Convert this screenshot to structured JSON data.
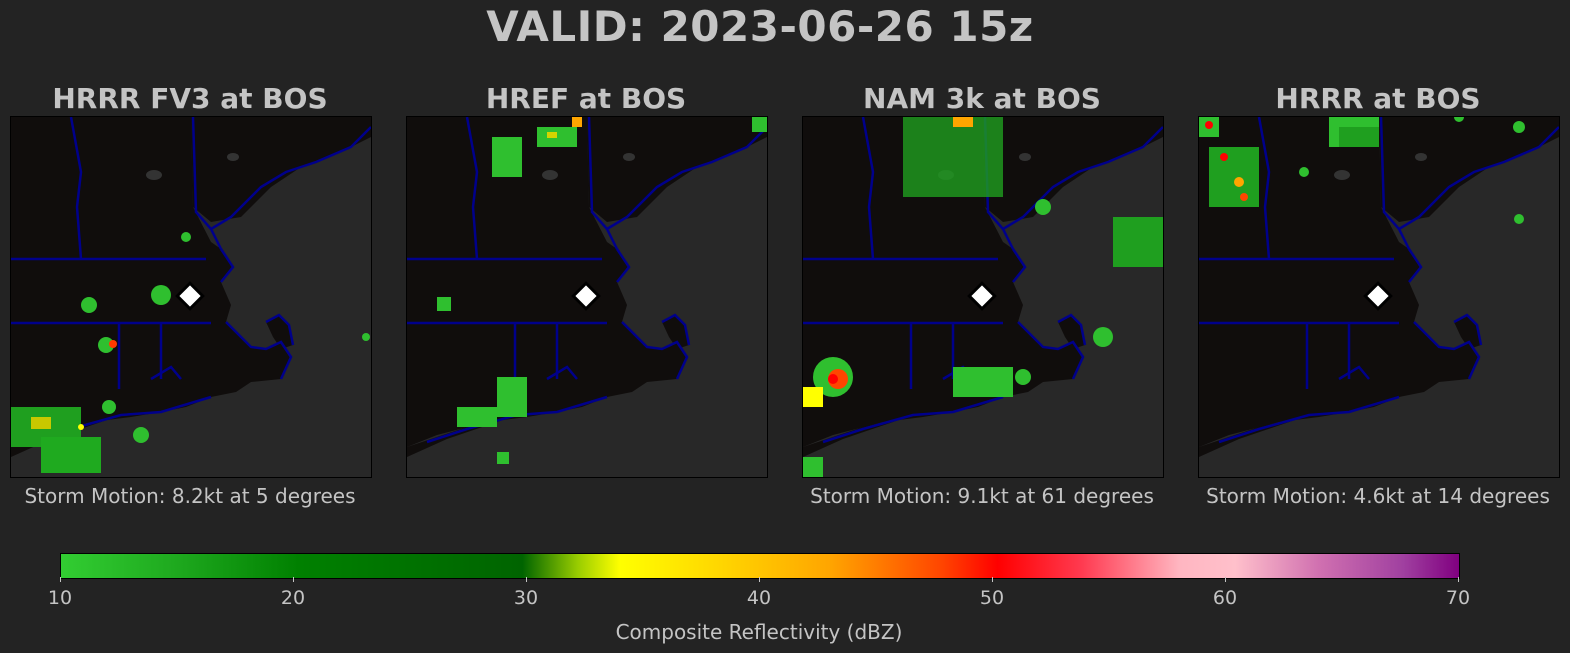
{
  "valid_title": "VALID: 2023-06-26 15z",
  "panels": [
    {
      "title": "HRRR FV3 at BOS",
      "storm_motion": "Storm Motion: 8.2kt at 5 degrees"
    },
    {
      "title": "HREF at BOS",
      "storm_motion": ""
    },
    {
      "title": "NAM 3k at BOS",
      "storm_motion": "Storm Motion: 9.1kt at 61 degrees"
    },
    {
      "title": "HRRR at BOS",
      "storm_motion": "Storm Motion: 4.6kt at 14 degrees"
    }
  ],
  "colorbar": {
    "label": "Composite Reflectivity (dBZ)",
    "ticks": [
      "10",
      "20",
      "30",
      "40",
      "50",
      "60",
      "70"
    ],
    "min": 10,
    "max": 70
  },
  "colors": {
    "background": "#232323",
    "land": "#100d0c",
    "water": "#282828",
    "borders": "#000080",
    "station_marker": "#ffffff"
  }
}
